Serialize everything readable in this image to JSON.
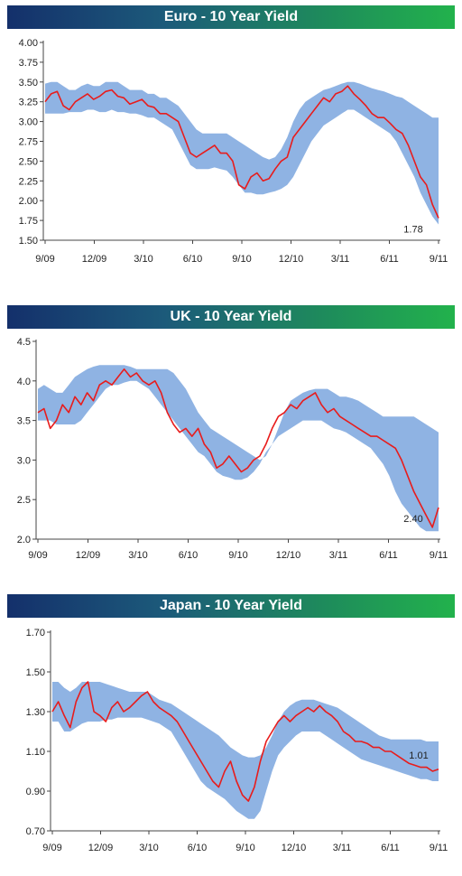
{
  "colors": {
    "band": "#8fb3e3",
    "line": "#e81c1c",
    "axis": "#444444"
  },
  "chart_data": [
    {
      "type": "line",
      "title": "Euro - 10 Year Yield",
      "xlabels": [
        "9/09",
        "12/09",
        "3/10",
        "6/10",
        "9/10",
        "12/10",
        "3/11",
        "6/11",
        "9/11"
      ],
      "yticks": [
        "4.00",
        "3.75",
        "3.50",
        "3.25",
        "3.00",
        "2.75",
        "2.50",
        "2.25",
        "2.00",
        "1.75",
        "1.50"
      ],
      "ylim": [
        1.5,
        4.0
      ],
      "end_label": "1.78",
      "series": [
        {
          "values": [
            3.25,
            3.35,
            3.38,
            3.2,
            3.15,
            3.25,
            3.3,
            3.35,
            3.28,
            3.32,
            3.38,
            3.4,
            3.32,
            3.3,
            3.22,
            3.25,
            3.28,
            3.2,
            3.18,
            3.1,
            3.1,
            3.05,
            3.0,
            2.8,
            2.6,
            2.55,
            2.6,
            2.65,
            2.7,
            2.6,
            2.6,
            2.5,
            2.2,
            2.15,
            2.3,
            2.35,
            2.25,
            2.28,
            2.4,
            2.5,
            2.55,
            2.8,
            2.9,
            3.0,
            3.1,
            3.2,
            3.3,
            3.25,
            3.35,
            3.38,
            3.45,
            3.35,
            3.28,
            3.2,
            3.1,
            3.05,
            3.05,
            2.98,
            2.9,
            2.85,
            2.7,
            2.5,
            2.3,
            2.2,
            1.95,
            1.78
          ]
        },
        {
          "values": [
            3.48,
            3.5,
            3.5,
            3.45,
            3.4,
            3.4,
            3.45,
            3.48,
            3.45,
            3.45,
            3.5,
            3.5,
            3.5,
            3.45,
            3.4,
            3.4,
            3.4,
            3.35,
            3.35,
            3.3,
            3.3,
            3.25,
            3.2,
            3.1,
            3.0,
            2.9,
            2.85,
            2.85,
            2.85,
            2.85,
            2.85,
            2.8,
            2.75,
            2.7,
            2.65,
            2.6,
            2.55,
            2.52,
            2.55,
            2.65,
            2.8,
            3.0,
            3.15,
            3.25,
            3.3,
            3.35,
            3.4,
            3.42,
            3.45,
            3.48,
            3.5,
            3.5,
            3.48,
            3.45,
            3.42,
            3.4,
            3.38,
            3.35,
            3.32,
            3.3,
            3.25,
            3.2,
            3.15,
            3.1,
            3.05,
            3.05
          ]
        },
        {
          "values": [
            3.1,
            3.1,
            3.1,
            3.1,
            3.12,
            3.12,
            3.12,
            3.15,
            3.15,
            3.12,
            3.12,
            3.15,
            3.12,
            3.12,
            3.1,
            3.1,
            3.08,
            3.05,
            3.05,
            3.0,
            2.95,
            2.9,
            2.75,
            2.6,
            2.45,
            2.4,
            2.4,
            2.4,
            2.42,
            2.4,
            2.38,
            2.3,
            2.2,
            2.1,
            2.1,
            2.08,
            2.08,
            2.1,
            2.12,
            2.15,
            2.2,
            2.3,
            2.45,
            2.6,
            2.75,
            2.85,
            2.95,
            3.0,
            3.05,
            3.1,
            3.15,
            3.15,
            3.1,
            3.05,
            3.0,
            2.95,
            2.9,
            2.85,
            2.75,
            2.6,
            2.45,
            2.3,
            2.1,
            1.95,
            1.8,
            1.7
          ]
        }
      ]
    },
    {
      "type": "line",
      "title": "UK - 10 Year Yield",
      "xlabels": [
        "9/09",
        "12/09",
        "3/10",
        "6/10",
        "9/10",
        "12/10",
        "3/11",
        "6/11",
        "9/11"
      ],
      "yticks": [
        "4.5",
        "4.0",
        "3.5",
        "3.0",
        "2.5",
        "2.0"
      ],
      "ylim": [
        2.0,
        4.5
      ],
      "end_label": "2.40",
      "series": [
        {
          "values": [
            3.6,
            3.65,
            3.4,
            3.5,
            3.7,
            3.6,
            3.8,
            3.7,
            3.85,
            3.75,
            3.95,
            4.0,
            3.95,
            4.05,
            4.15,
            4.05,
            4.1,
            4.0,
            3.95,
            4.0,
            3.85,
            3.6,
            3.45,
            3.35,
            3.4,
            3.3,
            3.4,
            3.2,
            3.1,
            2.9,
            2.95,
            3.05,
            2.95,
            2.85,
            2.9,
            3.0,
            3.05,
            3.2,
            3.4,
            3.55,
            3.6,
            3.7,
            3.65,
            3.75,
            3.8,
            3.85,
            3.7,
            3.6,
            3.65,
            3.55,
            3.5,
            3.45,
            3.4,
            3.35,
            3.3,
            3.3,
            3.25,
            3.2,
            3.15,
            3.0,
            2.8,
            2.6,
            2.45,
            2.3,
            2.15,
            2.4
          ]
        },
        {
          "values": [
            3.9,
            3.95,
            3.9,
            3.85,
            3.85,
            3.95,
            4.05,
            4.1,
            4.15,
            4.18,
            4.2,
            4.2,
            4.2,
            4.2,
            4.2,
            4.18,
            4.15,
            4.15,
            4.15,
            4.15,
            4.15,
            4.15,
            4.1,
            4.0,
            3.9,
            3.75,
            3.6,
            3.5,
            3.4,
            3.35,
            3.3,
            3.25,
            3.2,
            3.15,
            3.1,
            3.05,
            3.0,
            3.05,
            3.2,
            3.4,
            3.6,
            3.75,
            3.8,
            3.85,
            3.88,
            3.9,
            3.9,
            3.9,
            3.85,
            3.8,
            3.8,
            3.78,
            3.75,
            3.7,
            3.65,
            3.6,
            3.55,
            3.55,
            3.55,
            3.55,
            3.55,
            3.55,
            3.5,
            3.45,
            3.4,
            3.35
          ]
        },
        {
          "values": [
            3.5,
            3.5,
            3.5,
            3.45,
            3.45,
            3.45,
            3.45,
            3.5,
            3.6,
            3.7,
            3.8,
            3.9,
            3.95,
            3.95,
            3.98,
            4.0,
            4.0,
            3.95,
            3.9,
            3.8,
            3.7,
            3.6,
            3.5,
            3.4,
            3.3,
            3.2,
            3.1,
            3.05,
            2.95,
            2.85,
            2.8,
            2.78,
            2.75,
            2.75,
            2.78,
            2.85,
            2.95,
            3.1,
            3.2,
            3.3,
            3.35,
            3.4,
            3.45,
            3.5,
            3.5,
            3.5,
            3.5,
            3.45,
            3.4,
            3.38,
            3.35,
            3.3,
            3.25,
            3.2,
            3.15,
            3.05,
            2.95,
            2.8,
            2.6,
            2.45,
            2.35,
            2.25,
            2.15,
            2.1,
            2.1,
            2.1
          ]
        }
      ]
    },
    {
      "type": "line",
      "title": "Japan - 10 Year Yield",
      "xlabels": [
        "9/09",
        "12/09",
        "3/10",
        "6/10",
        "9/10",
        "12/10",
        "3/11",
        "6/11",
        "9/11"
      ],
      "yticks": [
        "1.70",
        "1.50",
        "1.30",
        "1.10",
        "0.90",
        "0.70"
      ],
      "ylim": [
        0.7,
        1.7
      ],
      "end_label": "1.01",
      "series": [
        {
          "values": [
            1.3,
            1.35,
            1.28,
            1.22,
            1.35,
            1.42,
            1.45,
            1.3,
            1.28,
            1.25,
            1.32,
            1.35,
            1.3,
            1.32,
            1.35,
            1.38,
            1.4,
            1.35,
            1.32,
            1.3,
            1.28,
            1.25,
            1.2,
            1.15,
            1.1,
            1.05,
            1.0,
            0.95,
            0.92,
            1.0,
            1.05,
            0.95,
            0.88,
            0.85,
            0.92,
            1.05,
            1.15,
            1.2,
            1.25,
            1.28,
            1.25,
            1.28,
            1.3,
            1.32,
            1.3,
            1.33,
            1.3,
            1.28,
            1.25,
            1.2,
            1.18,
            1.15,
            1.15,
            1.14,
            1.12,
            1.12,
            1.1,
            1.1,
            1.08,
            1.06,
            1.04,
            1.03,
            1.02,
            1.02,
            1.0,
            1.01
          ]
        },
        {
          "values": [
            1.45,
            1.45,
            1.42,
            1.4,
            1.42,
            1.45,
            1.45,
            1.45,
            1.45,
            1.44,
            1.43,
            1.42,
            1.41,
            1.4,
            1.4,
            1.4,
            1.4,
            1.38,
            1.36,
            1.35,
            1.34,
            1.32,
            1.3,
            1.28,
            1.26,
            1.24,
            1.22,
            1.2,
            1.18,
            1.15,
            1.12,
            1.1,
            1.08,
            1.07,
            1.07,
            1.08,
            1.12,
            1.18,
            1.25,
            1.3,
            1.33,
            1.35,
            1.36,
            1.36,
            1.36,
            1.35,
            1.34,
            1.33,
            1.32,
            1.3,
            1.28,
            1.26,
            1.24,
            1.22,
            1.2,
            1.18,
            1.17,
            1.16,
            1.16,
            1.16,
            1.16,
            1.16,
            1.16,
            1.15,
            1.15,
            1.15
          ]
        },
        {
          "values": [
            1.25,
            1.25,
            1.2,
            1.2,
            1.22,
            1.24,
            1.25,
            1.25,
            1.25,
            1.26,
            1.26,
            1.27,
            1.27,
            1.27,
            1.27,
            1.27,
            1.26,
            1.25,
            1.24,
            1.22,
            1.2,
            1.15,
            1.1,
            1.05,
            1.0,
            0.95,
            0.92,
            0.9,
            0.88,
            0.86,
            0.83,
            0.8,
            0.78,
            0.76,
            0.76,
            0.8,
            0.9,
            1.0,
            1.08,
            1.12,
            1.15,
            1.18,
            1.2,
            1.2,
            1.2,
            1.2,
            1.18,
            1.16,
            1.14,
            1.12,
            1.1,
            1.08,
            1.06,
            1.05,
            1.04,
            1.03,
            1.02,
            1.01,
            1.0,
            0.99,
            0.98,
            0.97,
            0.96,
            0.96,
            0.95,
            0.95
          ]
        }
      ]
    }
  ]
}
